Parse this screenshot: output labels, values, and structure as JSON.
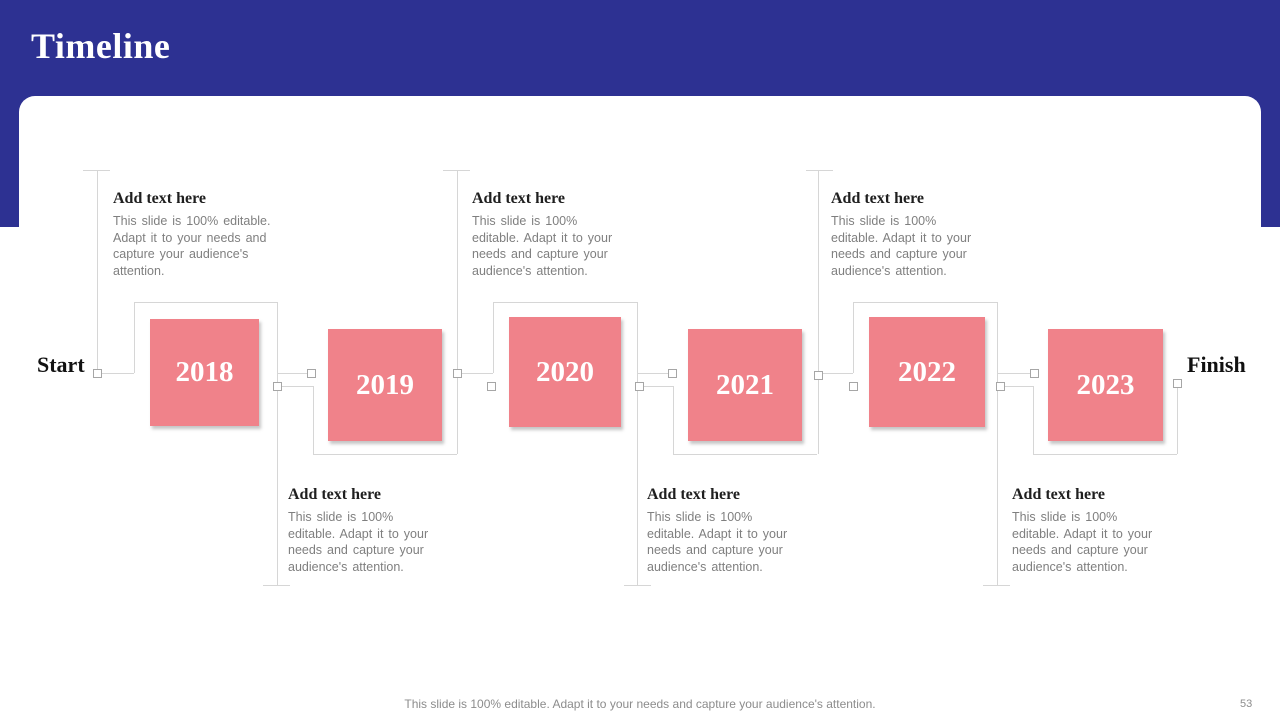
{
  "slide": {
    "title": "Timeline",
    "footer_note": "This slide is 100% editable. Adapt it to your needs and capture your audience's attention.",
    "slide_number": "53"
  },
  "timeline": {
    "start_label": "Start",
    "finish_label": "Finish",
    "items": [
      {
        "year": "2018",
        "position": "top",
        "heading": "Add text here",
        "body_lines": [
          "This slide is 100% editable.",
          "Adapt it to your needs and",
          "capture your audience's",
          "attention."
        ]
      },
      {
        "year": "2019",
        "position": "bottom",
        "heading": "Add text here",
        "body_lines": [
          "This slide is 100%",
          "editable. Adapt it to your",
          "needs and capture your",
          "audience's attention."
        ]
      },
      {
        "year": "2020",
        "position": "top",
        "heading": "Add text here",
        "body_lines": [
          "This slide is 100%",
          "editable. Adapt it to your",
          "needs and capture your",
          "audience's attention."
        ]
      },
      {
        "year": "2021",
        "position": "bottom",
        "heading": "Add text here",
        "body_lines": [
          "This slide is 100%",
          "editable. Adapt it to your",
          "needs and capture your",
          "audience's attention."
        ]
      },
      {
        "year": "2022",
        "position": "top",
        "heading": "Add text here",
        "body_lines": [
          "This slide is 100%",
          "editable. Adapt it to your",
          "needs and capture your",
          "audience's attention."
        ]
      },
      {
        "year": "2023",
        "position": "bottom",
        "heading": "Add text here",
        "body_lines": [
          "This slide is 100%",
          "editable. Adapt it to your",
          "needs and capture your",
          "audience's attention."
        ]
      }
    ],
    "colors": {
      "accent": "#f0828a",
      "header_bar": "#2d3192",
      "connector": "#d6d6d6"
    }
  }
}
